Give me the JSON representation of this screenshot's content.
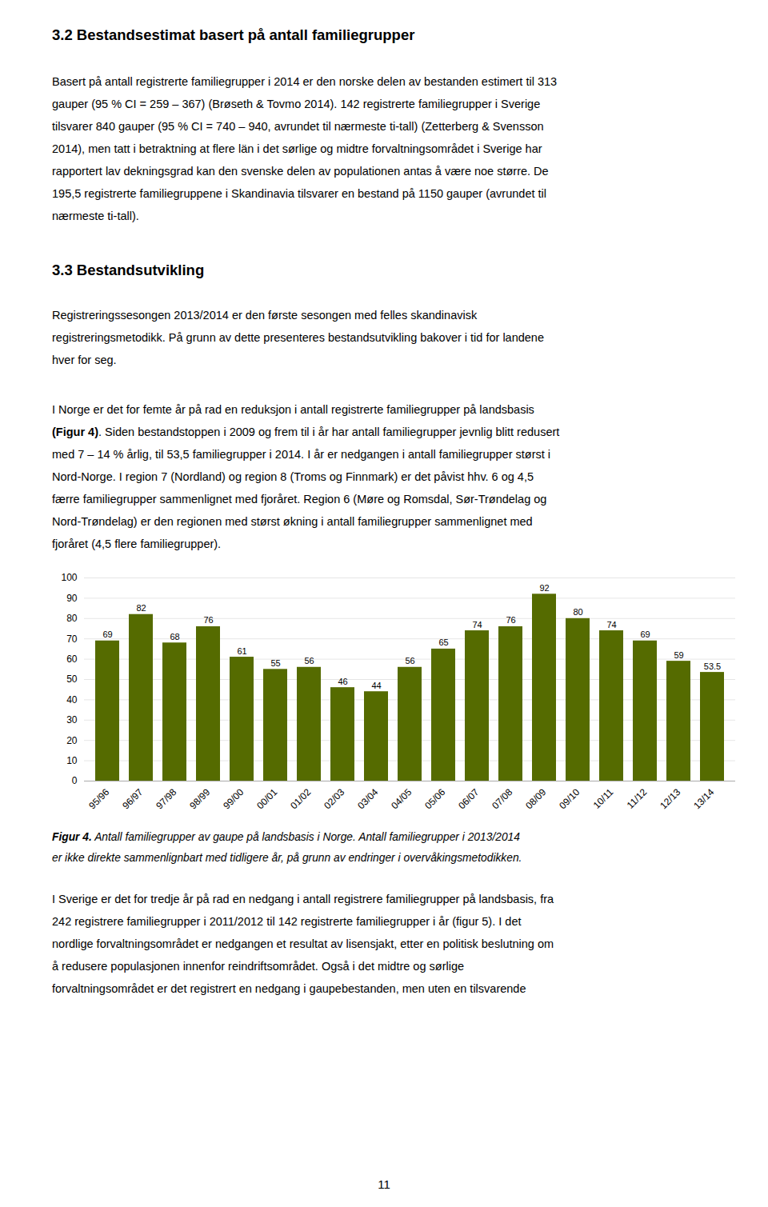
{
  "heading1": "3.2  Bestandsestimat basert på antall familiegrupper",
  "para1_lines": [
    "Basert på antall registrerte familiegrupper i 2014 er den norske delen av bestanden estimert til 313",
    "gauper (95 % CI = 259 – 367) (Brøseth & Tovmo 2014). 142 registrerte familiegrupper i Sverige",
    "tilsvarer 840 gauper (95 % CI = 740 – 940, avrundet til nærmeste ti-tall) (Zetterberg & Svensson",
    "2014), men tatt i betraktning at flere län i det sørlige og midtre forvaltningsområdet i Sverige har",
    "rapportert lav dekningsgrad kan den svenske delen av populationen antas å være noe større. De",
    "195,5 registrerte familiegruppene i Skandinavia tilsvarer en bestand på 1150 gauper (avrundet til",
    "nærmeste ti-tall)."
  ],
  "heading2": "3.3  Bestandsutvikling",
  "para2_lines": [
    "Registreringssesongen 2013/2014 er den første sesongen med felles skandinavisk",
    "registreringsmetodikk. På grunn av dette presenteres bestandsutvikling bakover i tid for landene",
    "hver for seg."
  ],
  "para3_lines": [
    "I Norge er det for femte år på rad en reduksjon i antall registrerte familiegrupper på landsbasis",
    "(Figur 4). Siden bestandstoppen i 2009 og frem til i år har antall familiegrupper jevnlig blitt redusert",
    "med 7 – 14 % årlig, til 53,5 familiegrupper i 2014. I år er nedgangen i antall familiegrupper størst i",
    "Nord-Norge. I region 7 (Nordland) og region 8 (Troms og Finnmark) er det påvist hhv. 6 og 4,5",
    "færre familiegrupper sammenlignet med fjoråret. Region 6 (Møre og Romsdal, Sør-Trøndelag og",
    "Nord-Trøndelag) er den regionen med størst økning i antall familiegrupper sammenlignet med",
    "fjoråret (4,5 flere familiegrupper)."
  ],
  "para3_bold": "(Figur 4)",
  "chart_data": {
    "type": "bar",
    "categories": [
      "95/96",
      "96/97",
      "97/98",
      "98/99",
      "99/00",
      "00/01",
      "01/02",
      "02/03",
      "03/04",
      "04/05",
      "05/06",
      "06/07",
      "07/08",
      "08/09",
      "09/10",
      "10/11",
      "11/12",
      "12/13",
      "13/14"
    ],
    "values": [
      69,
      82,
      68,
      76,
      61,
      55,
      56,
      46,
      44,
      56,
      65,
      74,
      76,
      92,
      80,
      74,
      69,
      59,
      53.5
    ],
    "color": "#556B00",
    "ylim": [
      0,
      100
    ],
    "yticks": [
      0,
      10,
      20,
      30,
      40,
      50,
      60,
      70,
      80,
      90,
      100
    ],
    "grid": true,
    "data_labels": true
  },
  "caption_bold": "Figur 4.",
  "caption_lines": [
    "Figur 4. Antall familiegrupper av gaupe på landsbasis i Norge. Antall familiegrupper i 2013/2014",
    "er ikke direkte sammenlignbart med tidligere år, på grunn av endringer i overvåkingsmetodikken."
  ],
  "para4_lines": [
    "I Sverige er det for tredje år på rad en nedgang i antall registrere familiegrupper på landsbasis, fra",
    "242 registrere familiegrupper i 2011/2012 til 142 registrerte familiegrupper i år (figur 5). I det",
    "nordlige forvaltningsområdet er nedgangen et resultat av lisensjakt, etter en politisk beslutning om",
    "å redusere populasjonen innenfor reindriftsområdet. Også i det midtre og sørlige",
    "forvaltningsområdet er det registrert en nedgang i gaupebestanden, men uten en tilsvarende"
  ],
  "page_number": "11"
}
